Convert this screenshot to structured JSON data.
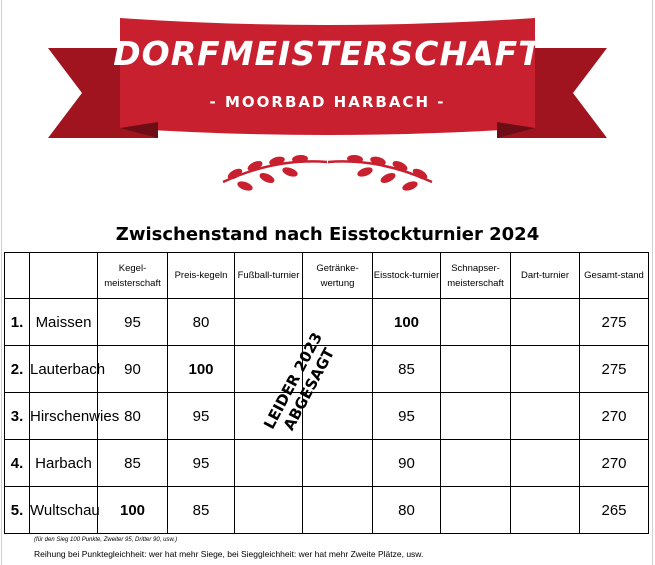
{
  "brand": {
    "title": "DORFMEISTERSCHAFT",
    "subtitle": "- MOORBAD HARBACH -",
    "color": "#c8202f"
  },
  "heading": "Zwischenstand nach Eisstockturnier 2024",
  "columns": [
    "",
    "",
    "Kegel-meisterschaft",
    "Preis-kegeln",
    "Fußball-turnier",
    "Getränke-wertung",
    "Eisstock-turnier",
    "Schnapser-meisterschaft",
    "Dart-turnier",
    "Gesamt-stand"
  ],
  "rows": [
    {
      "rank": "1.",
      "team": "Maissen",
      "kegel": "95",
      "preis": "80",
      "fussball": "",
      "getraenke": "",
      "eisstock": "100",
      "schnapser": "",
      "dart": "",
      "gesamt": "275"
    },
    {
      "rank": "2.",
      "team": "Lauterbach",
      "kegel": "90",
      "preis": "100",
      "fussball": "",
      "getraenke": "",
      "eisstock": "85",
      "schnapser": "",
      "dart": "",
      "gesamt": "275"
    },
    {
      "rank": "3.",
      "team": "Hirschenwies",
      "kegel": "80",
      "preis": "95",
      "fussball": "",
      "getraenke": "",
      "eisstock": "95",
      "schnapser": "",
      "dart": "",
      "gesamt": "270"
    },
    {
      "rank": "4.",
      "team": "Harbach",
      "kegel": "85",
      "preis": "95",
      "fussball": "",
      "getraenke": "",
      "eisstock": "90",
      "schnapser": "",
      "dart": "",
      "gesamt": "270"
    },
    {
      "rank": "5.",
      "team": "Wultschau",
      "kegel": "100",
      "preis": "85",
      "fussball": "",
      "getraenke": "",
      "eisstock": "80",
      "schnapser": "",
      "dart": "",
      "gesamt": "265"
    }
  ],
  "cancelled_stamp": {
    "line1": "LEIDER 2023",
    "line2": "ABGESAGT"
  },
  "footnotes": {
    "scoring": "(für den Sieg 100 Punkte, Zweiter 95, Dritter 90, usw.)",
    "tiebreak": "Reihung bei Punktegleichheit: wer hat mehr Siege, bei Sieggleichheit: wer hat mehr Zweite Plätze, usw."
  }
}
